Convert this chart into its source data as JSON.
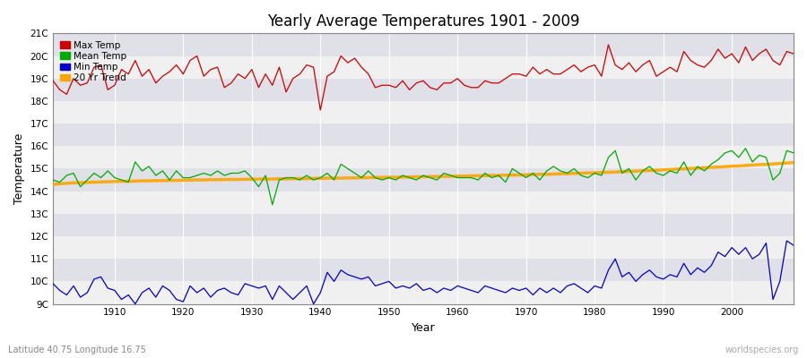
{
  "title": "Yearly Average Temperatures 1901 - 2009",
  "xlabel": "Year",
  "ylabel": "Temperature",
  "lat_lon_label": "Latitude 40.75 Longitude 16.75",
  "watermark": "worldspecies.org",
  "start_year": 1901,
  "end_year": 2009,
  "background_color": "#ffffff",
  "plot_bg_color": "#e0e0e8",
  "grid_color": "#ffffff",
  "max_temp_color": "#cc0000",
  "mean_temp_color": "#00aa00",
  "min_temp_color": "#0000cc",
  "trend_color": "#ffa500",
  "ylim_min": 9,
  "ylim_max": 21,
  "yticks": [
    9,
    10,
    11,
    12,
    13,
    14,
    15,
    16,
    17,
    18,
    19,
    20,
    21
  ],
  "ytick_labels": [
    "9C",
    "10C",
    "11C",
    "12C",
    "13C",
    "14C",
    "15C",
    "16C",
    "17C",
    "18C",
    "19C",
    "20C",
    "21C"
  ],
  "xticks": [
    1910,
    1920,
    1930,
    1940,
    1950,
    1960,
    1970,
    1980,
    1990,
    2000
  ],
  "legend_entries": [
    "Max Temp",
    "Mean Temp",
    "Min Temp",
    "20 Yr Trend"
  ],
  "legend_colors": [
    "#cc0000",
    "#00aa00",
    "#0000cc",
    "#ffa500"
  ],
  "max_temps": [
    18.9,
    18.5,
    18.3,
    19.0,
    18.7,
    18.8,
    19.5,
    19.6,
    18.5,
    18.7,
    19.4,
    19.2,
    19.8,
    19.1,
    19.4,
    18.8,
    19.1,
    19.3,
    19.6,
    19.2,
    19.8,
    20.0,
    19.1,
    19.4,
    19.5,
    18.6,
    18.8,
    19.2,
    19.0,
    19.4,
    18.6,
    19.2,
    18.7,
    19.5,
    18.4,
    19.0,
    19.2,
    19.6,
    19.5,
    17.6,
    19.1,
    19.3,
    20.0,
    19.7,
    19.9,
    19.5,
    19.2,
    18.6,
    18.7,
    18.7,
    18.6,
    18.9,
    18.5,
    18.8,
    18.9,
    18.6,
    18.5,
    18.8,
    18.8,
    19.0,
    18.7,
    18.6,
    18.6,
    18.9,
    18.8,
    18.8,
    19.0,
    19.2,
    19.2,
    19.1,
    19.5,
    19.2,
    19.4,
    19.2,
    19.2,
    19.4,
    19.6,
    19.3,
    19.5,
    19.6,
    19.1,
    20.5,
    19.6,
    19.4,
    19.7,
    19.3,
    19.6,
    19.8,
    19.1,
    19.3,
    19.5,
    19.3,
    20.2,
    19.8,
    19.6,
    19.5,
    19.8,
    20.3,
    19.9,
    20.1,
    19.7,
    20.4,
    19.8,
    20.1,
    20.3,
    19.8,
    19.6,
    20.2,
    20.1
  ],
  "mean_temps": [
    14.5,
    14.4,
    14.7,
    14.8,
    14.2,
    14.5,
    14.8,
    14.6,
    14.9,
    14.6,
    14.5,
    14.4,
    15.3,
    14.9,
    15.1,
    14.7,
    14.9,
    14.5,
    14.9,
    14.6,
    14.6,
    14.7,
    14.8,
    14.7,
    14.9,
    14.7,
    14.8,
    14.8,
    14.9,
    14.6,
    14.2,
    14.7,
    13.4,
    14.5,
    14.6,
    14.6,
    14.5,
    14.7,
    14.5,
    14.6,
    14.8,
    14.5,
    15.2,
    15.0,
    14.8,
    14.6,
    14.9,
    14.6,
    14.5,
    14.6,
    14.5,
    14.7,
    14.6,
    14.5,
    14.7,
    14.6,
    14.5,
    14.8,
    14.7,
    14.6,
    14.6,
    14.6,
    14.5,
    14.8,
    14.6,
    14.7,
    14.4,
    15.0,
    14.8,
    14.6,
    14.8,
    14.5,
    14.9,
    15.1,
    14.9,
    14.8,
    15.0,
    14.7,
    14.6,
    14.8,
    14.7,
    15.5,
    15.8,
    14.8,
    15.0,
    14.5,
    14.9,
    15.1,
    14.8,
    14.7,
    14.9,
    14.8,
    15.3,
    14.7,
    15.1,
    14.9,
    15.2,
    15.4,
    15.7,
    15.8,
    15.5,
    15.9,
    15.3,
    15.6,
    15.5,
    14.5,
    14.8,
    15.8,
    15.7
  ],
  "min_temps": [
    9.9,
    9.6,
    9.4,
    9.8,
    9.3,
    9.5,
    10.1,
    10.2,
    9.7,
    9.6,
    9.2,
    9.4,
    9.0,
    9.5,
    9.7,
    9.3,
    9.8,
    9.6,
    9.2,
    9.1,
    9.8,
    9.5,
    9.7,
    9.3,
    9.6,
    9.7,
    9.5,
    9.4,
    9.9,
    9.8,
    9.7,
    9.8,
    9.2,
    9.8,
    9.5,
    9.2,
    9.5,
    9.8,
    9.0,
    9.5,
    10.4,
    10.0,
    10.5,
    10.3,
    10.2,
    10.1,
    10.2,
    9.8,
    9.9,
    10.0,
    9.7,
    9.8,
    9.7,
    9.9,
    9.6,
    9.7,
    9.5,
    9.7,
    9.6,
    9.8,
    9.7,
    9.6,
    9.5,
    9.8,
    9.7,
    9.6,
    9.5,
    9.7,
    9.6,
    9.7,
    9.4,
    9.7,
    9.5,
    9.7,
    9.5,
    9.8,
    9.9,
    9.7,
    9.5,
    9.8,
    9.7,
    10.5,
    11.0,
    10.2,
    10.4,
    10.0,
    10.3,
    10.5,
    10.2,
    10.1,
    10.3,
    10.2,
    10.8,
    10.3,
    10.6,
    10.4,
    10.7,
    11.3,
    11.1,
    11.5,
    11.2,
    11.5,
    11.0,
    11.2,
    11.7,
    9.2,
    10.0,
    11.8,
    11.6
  ],
  "trend_temps": [
    14.3,
    14.33,
    14.35,
    14.37,
    14.38,
    14.39,
    14.4,
    14.41,
    14.42,
    14.43,
    14.44,
    14.44,
    14.45,
    14.46,
    14.46,
    14.47,
    14.47,
    14.48,
    14.48,
    14.49,
    14.49,
    14.5,
    14.5,
    14.51,
    14.51,
    14.52,
    14.52,
    14.52,
    14.53,
    14.53,
    14.54,
    14.54,
    14.54,
    14.55,
    14.55,
    14.56,
    14.56,
    14.56,
    14.57,
    14.57,
    14.58,
    14.58,
    14.58,
    14.59,
    14.59,
    14.6,
    14.6,
    14.61,
    14.61,
    14.62,
    14.62,
    14.63,
    14.63,
    14.64,
    14.64,
    14.65,
    14.65,
    14.66,
    14.66,
    14.67,
    14.67,
    14.68,
    14.68,
    14.69,
    14.7,
    14.7,
    14.71,
    14.72,
    14.72,
    14.73,
    14.74,
    14.75,
    14.75,
    14.76,
    14.77,
    14.78,
    14.79,
    14.8,
    14.81,
    14.82,
    14.83,
    14.84,
    14.85,
    14.87,
    14.88,
    14.89,
    14.91,
    14.92,
    14.93,
    14.95,
    14.96,
    14.98,
    14.99,
    15.01,
    15.02,
    15.04,
    15.06,
    15.07,
    15.09,
    15.11,
    15.12,
    15.14,
    15.16,
    15.18,
    15.19,
    15.21,
    15.23,
    15.25,
    15.27
  ]
}
